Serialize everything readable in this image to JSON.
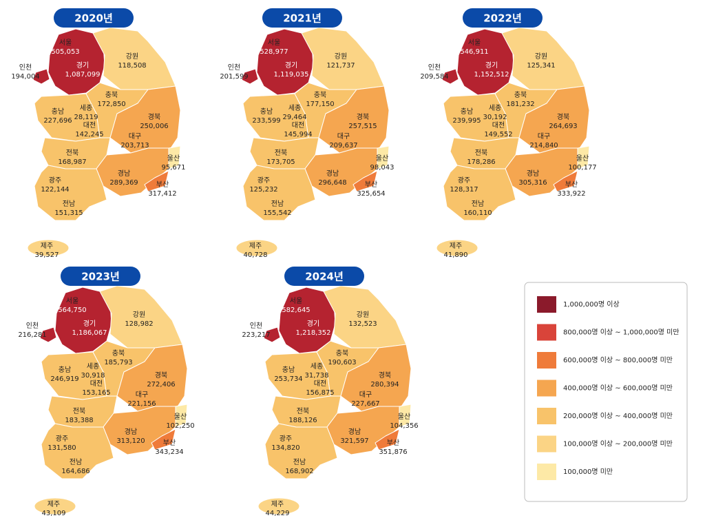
{
  "regions": [
    {
      "name": "서울"
    },
    {
      "name": "경기",
      "color": "#b52330"
    },
    {
      "name": "인천",
      "color": "#b52330"
    },
    {
      "name": "강원",
      "color": "#fbd485"
    },
    {
      "name": "충북",
      "color": "#f8c36a"
    },
    {
      "name": "세종"
    },
    {
      "name": "충남",
      "color": "#f8c36a"
    },
    {
      "name": "대전"
    },
    {
      "name": "경북",
      "color": "#f5a650"
    },
    {
      "name": "대구"
    },
    {
      "name": "전북",
      "color": "#f8c36a"
    },
    {
      "name": "울산",
      "color": "#fde9a6"
    },
    {
      "name": "경남",
      "color": "#f5a650"
    },
    {
      "name": "부산",
      "color": "#ef7b3a"
    },
    {
      "name": "광주"
    },
    {
      "name": "전남",
      "color": "#f8c36a"
    },
    {
      "name": "제주",
      "color": "#fbd485"
    }
  ],
  "maps": [
    {
      "year": "2020년",
      "values": [
        "505,053",
        "1,087,099",
        "194,004",
        "118,508",
        "172,850",
        "28,119",
        "227,696",
        "142,245",
        "250,006",
        "203,713",
        "168,987",
        "95,671",
        "289,369",
        "317,412",
        "122,144",
        "151,315",
        "39,527"
      ]
    },
    {
      "year": "2021년",
      "values": [
        "528,977",
        "1,119,035",
        "201,599",
        "121,737",
        "177,150",
        "29,464",
        "233,599",
        "145,994",
        "257,515",
        "209,637",
        "173,705",
        "98,043",
        "296,648",
        "325,654",
        "125,232",
        "155,542",
        "40,728"
      ]
    },
    {
      "year": "2022년",
      "values": [
        "546,911",
        "1,152,512",
        "209,584",
        "125,341",
        "181,232",
        "30,192",
        "239,995",
        "149,552",
        "264,693",
        "214,840",
        "178,286",
        "100,177",
        "305,316",
        "333,922",
        "128,317",
        "160,110",
        "41,890"
      ]
    },
    {
      "year": "2023년",
      "values": [
        "564,750",
        "1,186,067",
        "216,281",
        "128,982",
        "185,793",
        "30,918",
        "246,919",
        "153,165",
        "272,406",
        "221,156",
        "183,388",
        "102,250",
        "313,120",
        "343,234",
        "131,580",
        "164,686",
        "43,109"
      ]
    },
    {
      "year": "2024년",
      "values": [
        "582,645",
        "1,218,352",
        "223,217",
        "132,523",
        "190,603",
        "31,738",
        "253,734",
        "156,875",
        "280,394",
        "227,667",
        "188,126",
        "104,356",
        "321,597",
        "351,876",
        "134,820",
        "168,902",
        "44,229"
      ]
    }
  ],
  "legend": [
    {
      "label": "1,000,000명 이상",
      "color": "#8b1a2b"
    },
    {
      "label": "800,000명 이상 ~ 1,000,000명 미만",
      "color": "#d9443a"
    },
    {
      "label": "600,000명 이상 ~ 800,000명 미만",
      "color": "#ef7b3a"
    },
    {
      "label": "400,000명 이상 ~ 600,000명 미만",
      "color": "#f5a650"
    },
    {
      "label": "200,000명 이상 ~ 400,000명 미만",
      "color": "#f8c36a"
    },
    {
      "label": "100,000명 이상 ~ 200,000명 미만",
      "color": "#fbd485"
    },
    {
      "label": "100,000명 미만",
      "color": "#fde9a6"
    }
  ]
}
